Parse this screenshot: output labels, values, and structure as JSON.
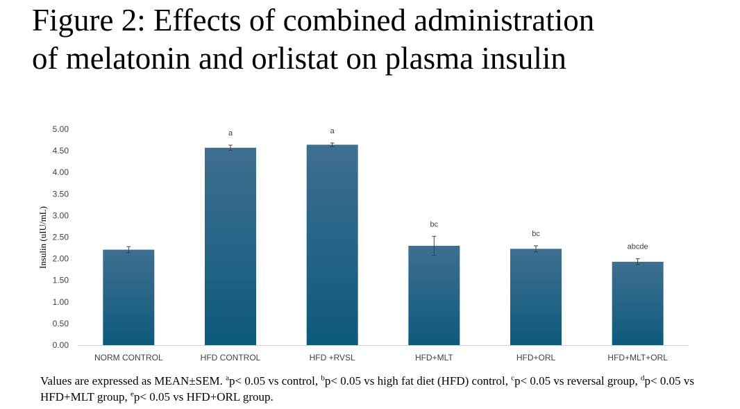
{
  "title": {
    "line1": "Figure 2: Effects of combined administration",
    "line2": "of melatonin and orlistat on plasma insulin"
  },
  "chart_data": {
    "type": "bar",
    "categories": [
      "NORM CONTROL",
      "HFD CONTROL",
      "HFD +RVSL",
      "HFD+MLT",
      "HFD+ORL",
      "HFD+MLT+ORL"
    ],
    "values": [
      2.21,
      4.57,
      4.64,
      2.3,
      2.23,
      1.93
    ],
    "errors": [
      0.07,
      0.06,
      0.04,
      0.22,
      0.07,
      0.07
    ],
    "significance": [
      "",
      "a",
      "a",
      "bc",
      "bc",
      "abcde"
    ],
    "ylabel": "Insulin (uIU/mL)",
    "ylim": [
      0,
      5
    ],
    "yticks": [
      "0.00",
      "0.50",
      "1.00",
      "1.50",
      "2.00",
      "2.50",
      "3.00",
      "3.50",
      "4.00",
      "4.50",
      "5.00"
    ],
    "grid": false,
    "legend": "none",
    "bar_color_top": "#3f6f90",
    "bar_color_bottom": "#0d5a7c"
  },
  "footnote": {
    "p1": "Values are expressed as MEAN±SEM. ",
    "s1": "a",
    "p2": "p< 0.05 vs control, ",
    "s2": "b",
    "p3": "p< 0.05 vs high fat diet (HFD) control, ",
    "s3": "c",
    "p4": "p< 0.05 vs reversal group, ",
    "s4": "d",
    "p5": "p< 0.05 vs HFD+MLT group, ",
    "s5": "e",
    "p6": "p< 0.05 vs HFD+ORL group."
  }
}
